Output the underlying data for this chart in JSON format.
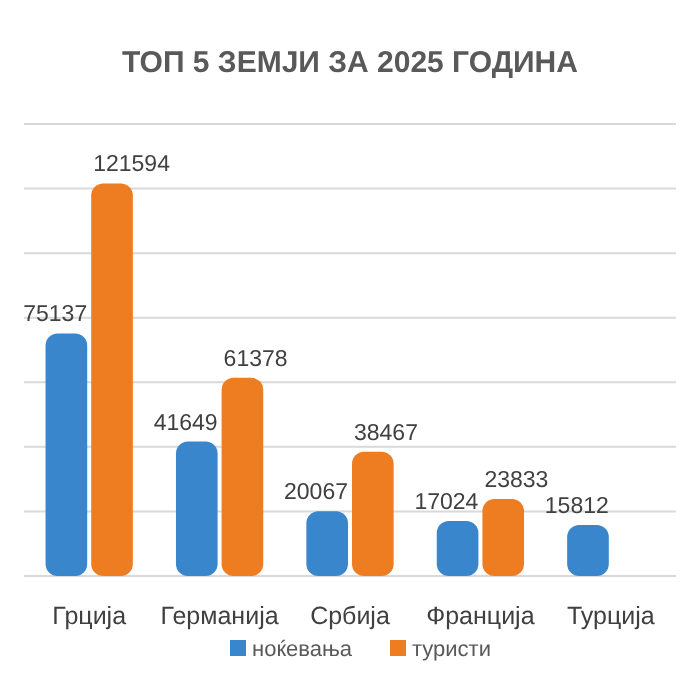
{
  "chart_data": {
    "type": "bar",
    "title": "ТОП 5 ЗЕМЈИ ЗА 2025 ГОДИНА",
    "categories": [
      "Грција",
      "Германија",
      "Србија",
      "Франција",
      "Турција"
    ],
    "series": [
      {
        "name": "ноќевања",
        "color": "#3a86cc",
        "values": [
          75137,
          41649,
          20067,
          17024,
          15812
        ]
      },
      {
        "name": "туристи",
        "color": "#ee7d22",
        "values": [
          121594,
          61378,
          38467,
          23833,
          null
        ]
      }
    ],
    "ylim": [
      0,
      140000
    ],
    "yticks": [
      0,
      20000,
      40000,
      60000,
      80000,
      100000,
      120000,
      140000
    ],
    "tick_labels": "x",
    "grid": "y",
    "legend": "bottom",
    "data_labels": true
  }
}
